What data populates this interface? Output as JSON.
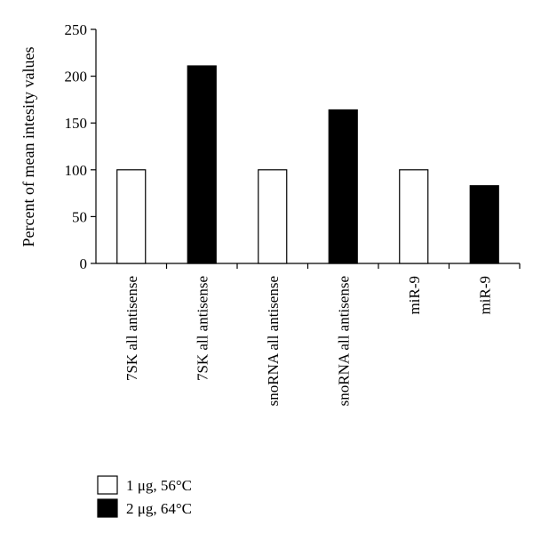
{
  "chart_data": {
    "type": "bar",
    "title": "",
    "xlabel": "",
    "ylabel": "Percent of mean intesity values",
    "ylim": [
      0,
      250
    ],
    "yticks": [
      0,
      50,
      100,
      150,
      200,
      250
    ],
    "grid": false,
    "legend_position": "bottom-left",
    "categories": [
      "7SK all antisense",
      "7SK all antisense",
      "snoRNA all antisense",
      "snoRNA all antisense",
      "miR-9",
      "miR-9"
    ],
    "values": [
      100,
      211,
      100,
      164,
      100,
      83
    ],
    "bar_series": [
      0,
      1,
      0,
      1,
      0,
      1
    ],
    "series": [
      {
        "name": "1 μg, 56°C",
        "color": "#ffffff"
      },
      {
        "name": "2 μg, 64°C",
        "color": "#000000"
      }
    ]
  }
}
